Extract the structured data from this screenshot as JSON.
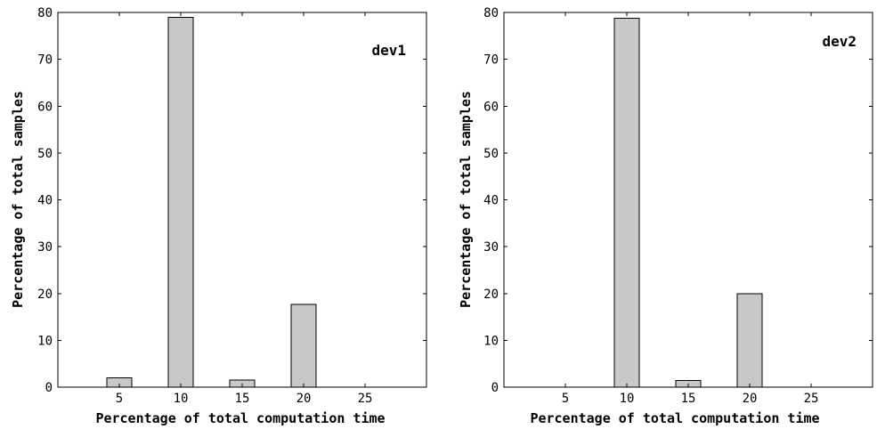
{
  "chart_data": [
    {
      "type": "bar",
      "title": "dev1",
      "xlabel": "Percentage of total computation time",
      "ylabel": "Percentage of total samples",
      "categories": [
        "5",
        "10",
        "15",
        "20",
        "25"
      ],
      "values": [
        2.0,
        79.0,
        1.5,
        17.7,
        0
      ],
      "xlim": [
        0,
        30
      ],
      "ylim": [
        0,
        80
      ],
      "yticks": [
        "0",
        "10",
        "20",
        "30",
        "40",
        "50",
        "60",
        "70",
        "80"
      ],
      "bar_color": "#c8c8c8",
      "grid": false
    },
    {
      "type": "bar",
      "title": "dev2",
      "xlabel": "Percentage of total computation time",
      "ylabel": "Percentage of total samples",
      "categories": [
        "5",
        "10",
        "15",
        "20",
        "25"
      ],
      "values": [
        0,
        78.8,
        1.4,
        20.0,
        0
      ],
      "xlim": [
        0,
        30
      ],
      "ylim": [
        0,
        80
      ],
      "yticks": [
        "0",
        "10",
        "20",
        "30",
        "40",
        "50",
        "60",
        "70",
        "80"
      ],
      "bar_color": "#c8c8c8",
      "grid": false
    }
  ]
}
